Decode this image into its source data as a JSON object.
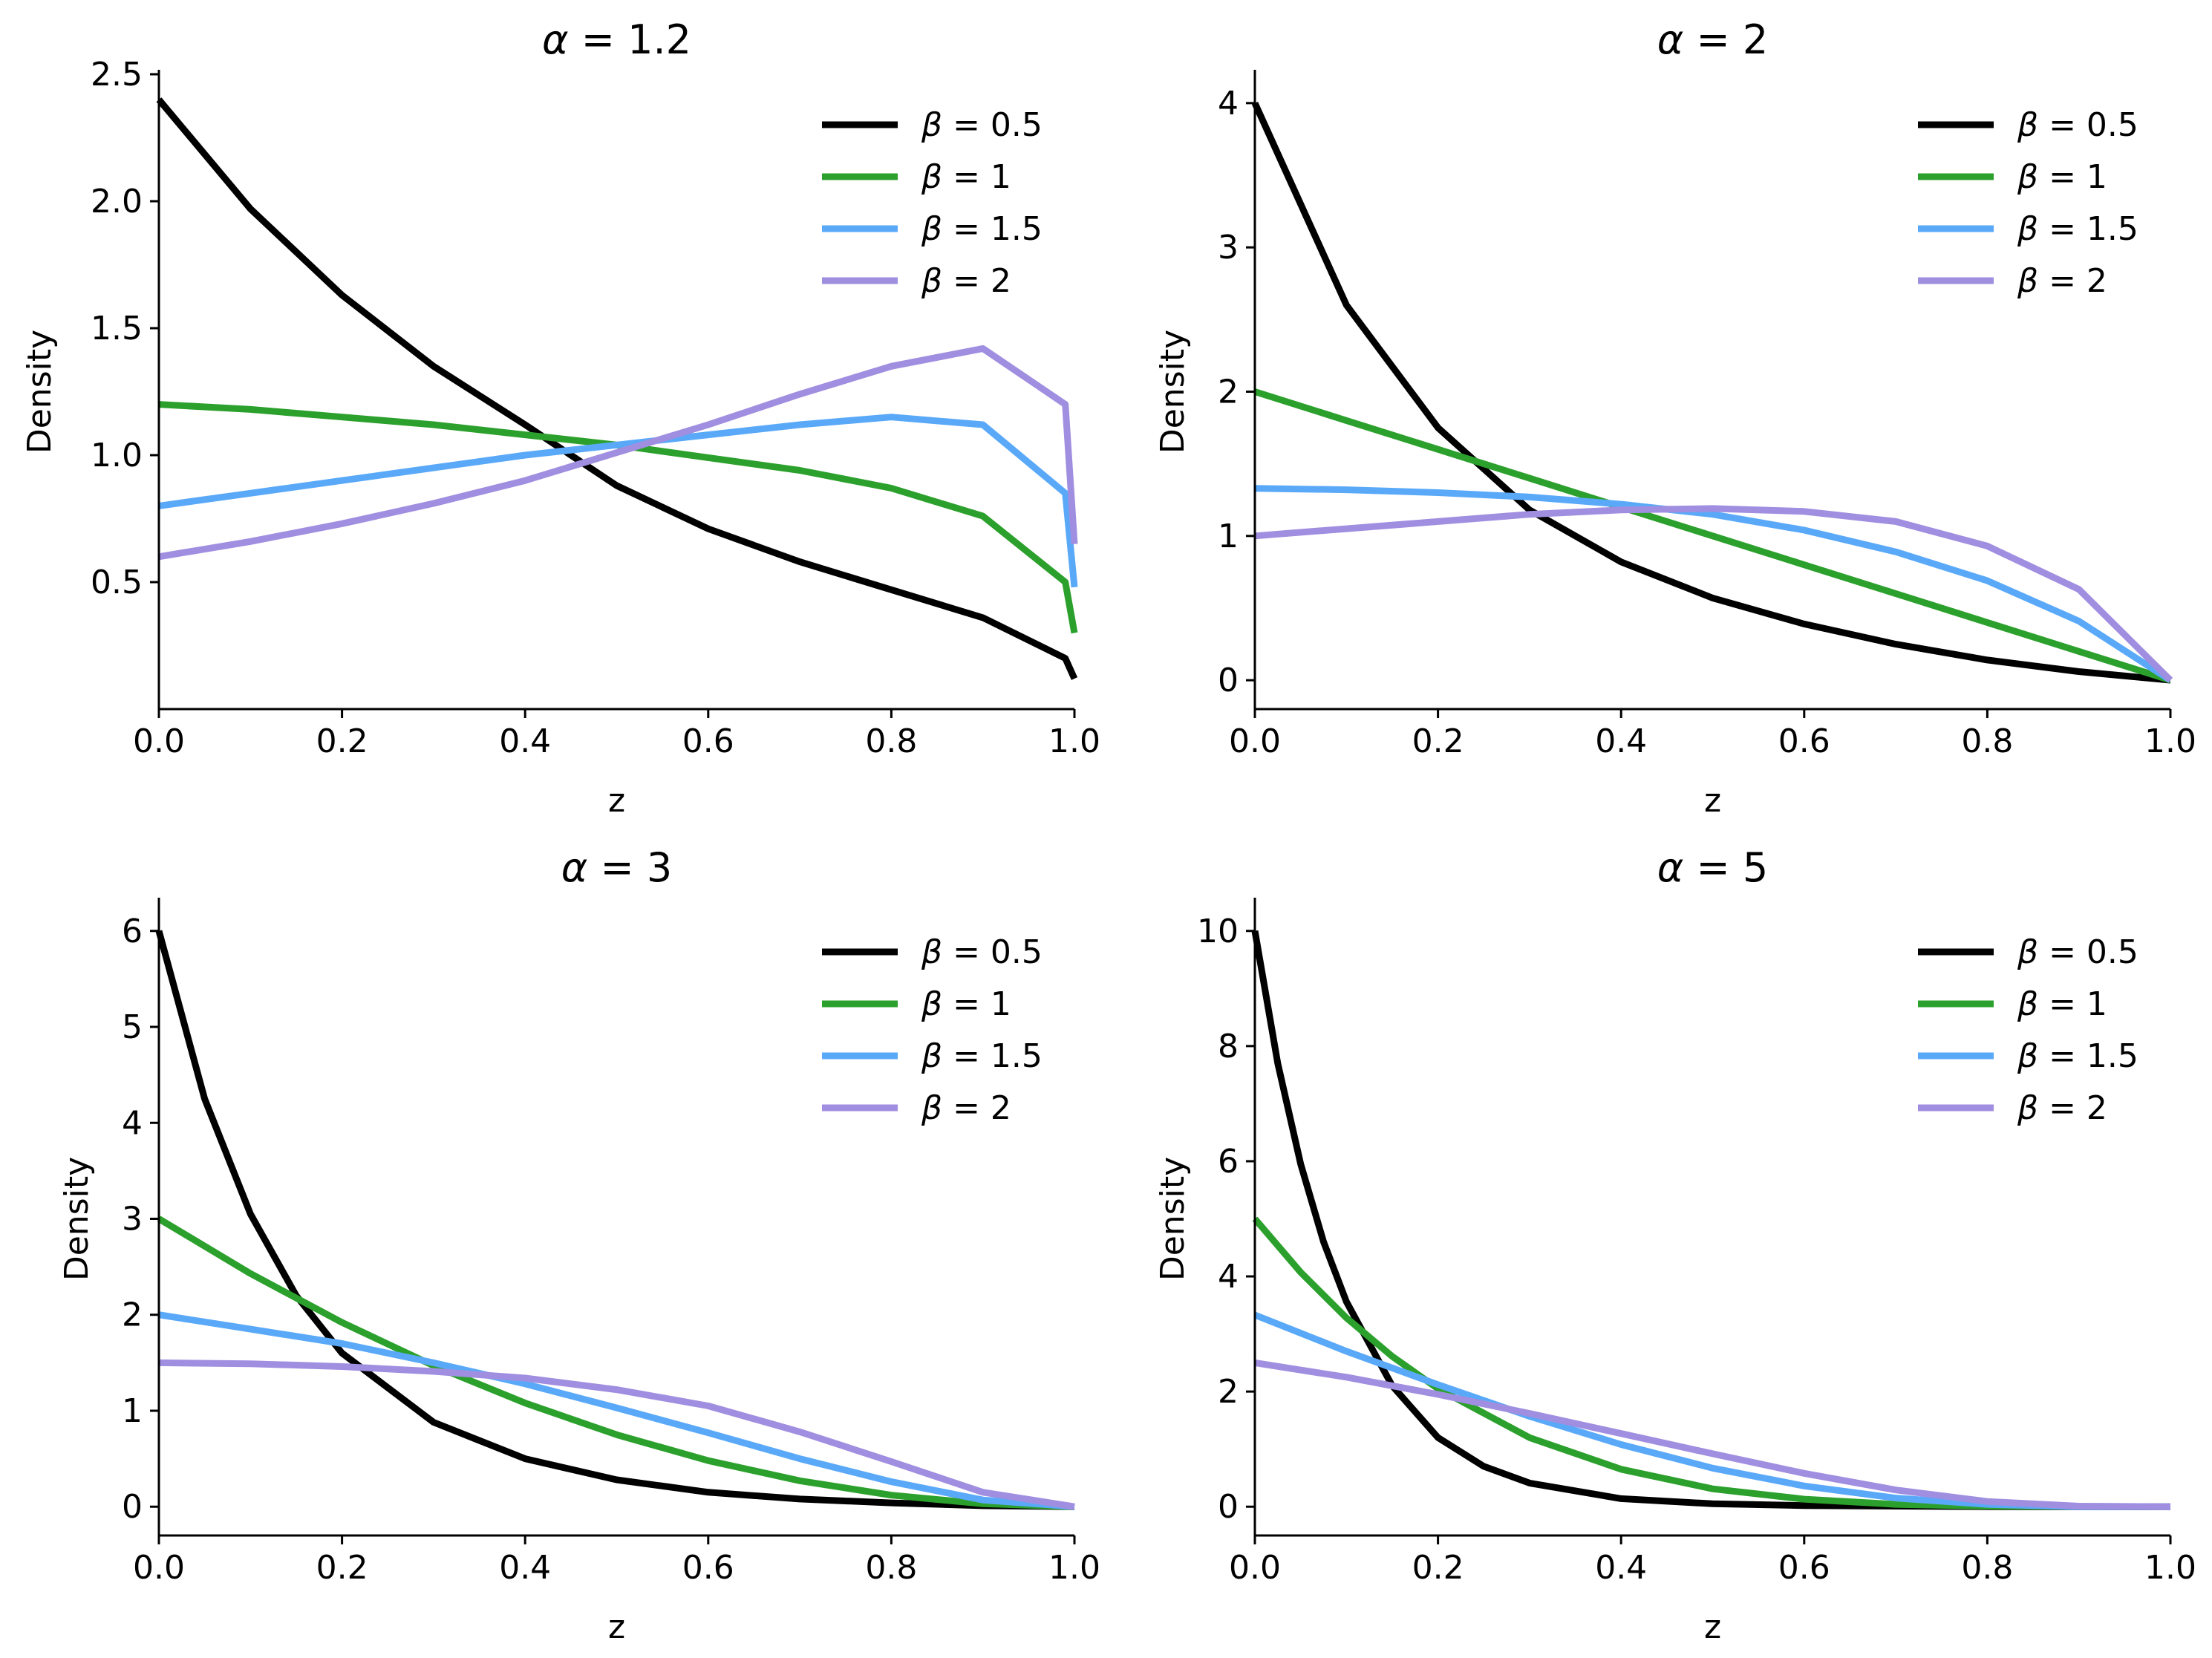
{
  "chart_data": [
    {
      "type": "line",
      "title": "α = 1.2",
      "alpha": 1.2,
      "xlabel": "z",
      "ylabel": "Density",
      "xlim": [
        0,
        1
      ],
      "ylim": [
        0,
        2.5
      ],
      "xticks": [
        "0.0",
        "0.2",
        "0.4",
        "0.6",
        "0.8",
        "1.0"
      ],
      "yticks": [
        "0.5",
        "1.0",
        "1.5",
        "2.0",
        "2.5"
      ],
      "series": [
        {
          "name": "β = 0.5",
          "color": "#000000",
          "x": [
            0,
            0.1,
            0.2,
            0.3,
            0.4,
            0.5,
            0.6,
            0.7,
            0.8,
            0.9,
            0.99,
            1.0
          ],
          "y": [
            2.4,
            1.97,
            1.63,
            1.35,
            1.12,
            0.88,
            0.71,
            0.58,
            0.47,
            0.36,
            0.2,
            0.12
          ]
        },
        {
          "name": "β = 1",
          "color": "#2ca02c",
          "x": [
            0,
            0.1,
            0.2,
            0.3,
            0.4,
            0.5,
            0.6,
            0.7,
            0.8,
            0.9,
            0.99,
            1.0
          ],
          "y": [
            1.2,
            1.18,
            1.15,
            1.12,
            1.08,
            1.04,
            0.99,
            0.94,
            0.87,
            0.76,
            0.5,
            0.3
          ]
        },
        {
          "name": "β = 1.5",
          "color": "#5aa9f9",
          "x": [
            0,
            0.1,
            0.2,
            0.3,
            0.4,
            0.5,
            0.6,
            0.7,
            0.8,
            0.9,
            0.99,
            1.0
          ],
          "y": [
            0.8,
            0.85,
            0.9,
            0.95,
            1.0,
            1.04,
            1.08,
            1.12,
            1.15,
            1.12,
            0.85,
            0.48
          ]
        },
        {
          "name": "β = 2",
          "color": "#a08ee0",
          "x": [
            0,
            0.1,
            0.2,
            0.3,
            0.4,
            0.5,
            0.6,
            0.7,
            0.8,
            0.9,
            0.99,
            1.0
          ],
          "y": [
            0.6,
            0.66,
            0.73,
            0.81,
            0.9,
            1.01,
            1.12,
            1.24,
            1.35,
            1.42,
            1.2,
            0.65
          ]
        }
      ]
    },
    {
      "type": "line",
      "title": "α = 2",
      "alpha": 2,
      "xlabel": "z",
      "ylabel": "Density",
      "xlim": [
        0,
        1
      ],
      "ylim": [
        -0.2,
        4.2
      ],
      "xticks": [
        "0.0",
        "0.2",
        "0.4",
        "0.6",
        "0.8",
        "1.0"
      ],
      "yticks": [
        "0",
        "1",
        "2",
        "3",
        "4"
      ],
      "series": [
        {
          "name": "β = 0.5",
          "color": "#000000",
          "x": [
            0,
            0.1,
            0.2,
            0.3,
            0.4,
            0.5,
            0.6,
            0.7,
            0.8,
            0.9,
            1.0
          ],
          "y": [
            4.0,
            2.6,
            1.75,
            1.18,
            0.82,
            0.57,
            0.39,
            0.25,
            0.14,
            0.06,
            0.0
          ]
        },
        {
          "name": "β = 1",
          "color": "#2ca02c",
          "x": [
            0,
            0.1,
            0.2,
            0.3,
            0.4,
            0.5,
            0.6,
            0.7,
            0.8,
            0.9,
            1.0
          ],
          "y": [
            2.0,
            1.8,
            1.6,
            1.4,
            1.2,
            1.0,
            0.8,
            0.6,
            0.4,
            0.2,
            0.0
          ]
        },
        {
          "name": "β = 1.5",
          "color": "#5aa9f9",
          "x": [
            0,
            0.1,
            0.2,
            0.3,
            0.4,
            0.5,
            0.6,
            0.7,
            0.8,
            0.9,
            1.0
          ],
          "y": [
            1.33,
            1.32,
            1.3,
            1.27,
            1.22,
            1.15,
            1.04,
            0.89,
            0.69,
            0.41,
            0.0
          ]
        },
        {
          "name": "β = 2",
          "color": "#a08ee0",
          "x": [
            0,
            0.1,
            0.2,
            0.3,
            0.4,
            0.5,
            0.6,
            0.7,
            0.8,
            0.9,
            1.0
          ],
          "y": [
            1.0,
            1.05,
            1.1,
            1.15,
            1.18,
            1.19,
            1.17,
            1.1,
            0.93,
            0.63,
            0.0
          ]
        }
      ]
    },
    {
      "type": "line",
      "title": "α = 3",
      "alpha": 3,
      "xlabel": "z",
      "ylabel": "Density",
      "xlim": [
        0,
        1
      ],
      "ylim": [
        -0.3,
        6.3
      ],
      "xticks": [
        "0.0",
        "0.2",
        "0.4",
        "0.6",
        "0.8",
        "1.0"
      ],
      "yticks": [
        "0",
        "1",
        "2",
        "3",
        "4",
        "5",
        "6"
      ],
      "series": [
        {
          "name": "β = 0.5",
          "color": "#000000",
          "x": [
            0,
            0.05,
            0.1,
            0.15,
            0.2,
            0.3,
            0.4,
            0.5,
            0.6,
            0.7,
            0.8,
            0.9,
            1.0
          ],
          "y": [
            6.0,
            4.25,
            3.05,
            2.2,
            1.6,
            0.88,
            0.5,
            0.28,
            0.15,
            0.08,
            0.04,
            0.01,
            0.0
          ]
        },
        {
          "name": "β = 1",
          "color": "#2ca02c",
          "x": [
            0,
            0.1,
            0.2,
            0.3,
            0.4,
            0.5,
            0.6,
            0.7,
            0.8,
            0.9,
            1.0
          ],
          "y": [
            3.0,
            2.43,
            1.92,
            1.47,
            1.08,
            0.75,
            0.48,
            0.27,
            0.12,
            0.03,
            0.0
          ]
        },
        {
          "name": "β = 1.5",
          "color": "#5aa9f9",
          "x": [
            0,
            0.1,
            0.2,
            0.3,
            0.4,
            0.5,
            0.6,
            0.7,
            0.8,
            0.9,
            1.0
          ],
          "y": [
            2.0,
            1.85,
            1.7,
            1.5,
            1.28,
            1.03,
            0.77,
            0.5,
            0.26,
            0.07,
            0.0
          ]
        },
        {
          "name": "β = 2",
          "color": "#a08ee0",
          "x": [
            0,
            0.1,
            0.2,
            0.3,
            0.4,
            0.5,
            0.6,
            0.7,
            0.8,
            0.9,
            1.0
          ],
          "y": [
            1.5,
            1.49,
            1.46,
            1.41,
            1.34,
            1.22,
            1.05,
            0.78,
            0.47,
            0.15,
            0.0
          ]
        }
      ]
    },
    {
      "type": "line",
      "title": "α = 5",
      "alpha": 5,
      "xlabel": "z",
      "ylabel": "Density",
      "xlim": [
        0,
        1
      ],
      "ylim": [
        -0.5,
        10.5
      ],
      "xticks": [
        "0.0",
        "0.2",
        "0.4",
        "0.6",
        "0.8",
        "1.0"
      ],
      "yticks": [
        "0",
        "2",
        "4",
        "6",
        "8",
        "10"
      ],
      "series": [
        {
          "name": "β = 0.5",
          "color": "#000000",
          "x": [
            0,
            0.025,
            0.05,
            0.075,
            0.1,
            0.15,
            0.2,
            0.25,
            0.3,
            0.4,
            0.5,
            0.6,
            0.8,
            1.0
          ],
          "y": [
            10.0,
            7.7,
            5.95,
            4.6,
            3.56,
            2.1,
            1.2,
            0.7,
            0.41,
            0.14,
            0.05,
            0.02,
            0.0,
            0.0
          ]
        },
        {
          "name": "β = 1",
          "color": "#2ca02c",
          "x": [
            0,
            0.05,
            0.1,
            0.15,
            0.2,
            0.3,
            0.4,
            0.5,
            0.6,
            0.7,
            0.8,
            1.0
          ],
          "y": [
            5.0,
            4.07,
            3.28,
            2.61,
            2.05,
            1.2,
            0.65,
            0.31,
            0.13,
            0.04,
            0.01,
            0.0
          ]
        },
        {
          "name": "β = 1.5",
          "color": "#5aa9f9",
          "x": [
            0,
            0.1,
            0.2,
            0.3,
            0.4,
            0.5,
            0.6,
            0.7,
            0.8,
            0.9,
            1.0
          ],
          "y": [
            3.33,
            2.7,
            2.12,
            1.57,
            1.08,
            0.67,
            0.36,
            0.15,
            0.04,
            0.0,
            0.0
          ]
        },
        {
          "name": "β = 2",
          "color": "#a08ee0",
          "x": [
            0,
            0.1,
            0.2,
            0.3,
            0.4,
            0.5,
            0.6,
            0.7,
            0.8,
            0.9,
            1.0
          ],
          "y": [
            2.5,
            2.25,
            1.95,
            1.62,
            1.27,
            0.92,
            0.58,
            0.29,
            0.09,
            0.01,
            0.0
          ]
        }
      ]
    }
  ]
}
